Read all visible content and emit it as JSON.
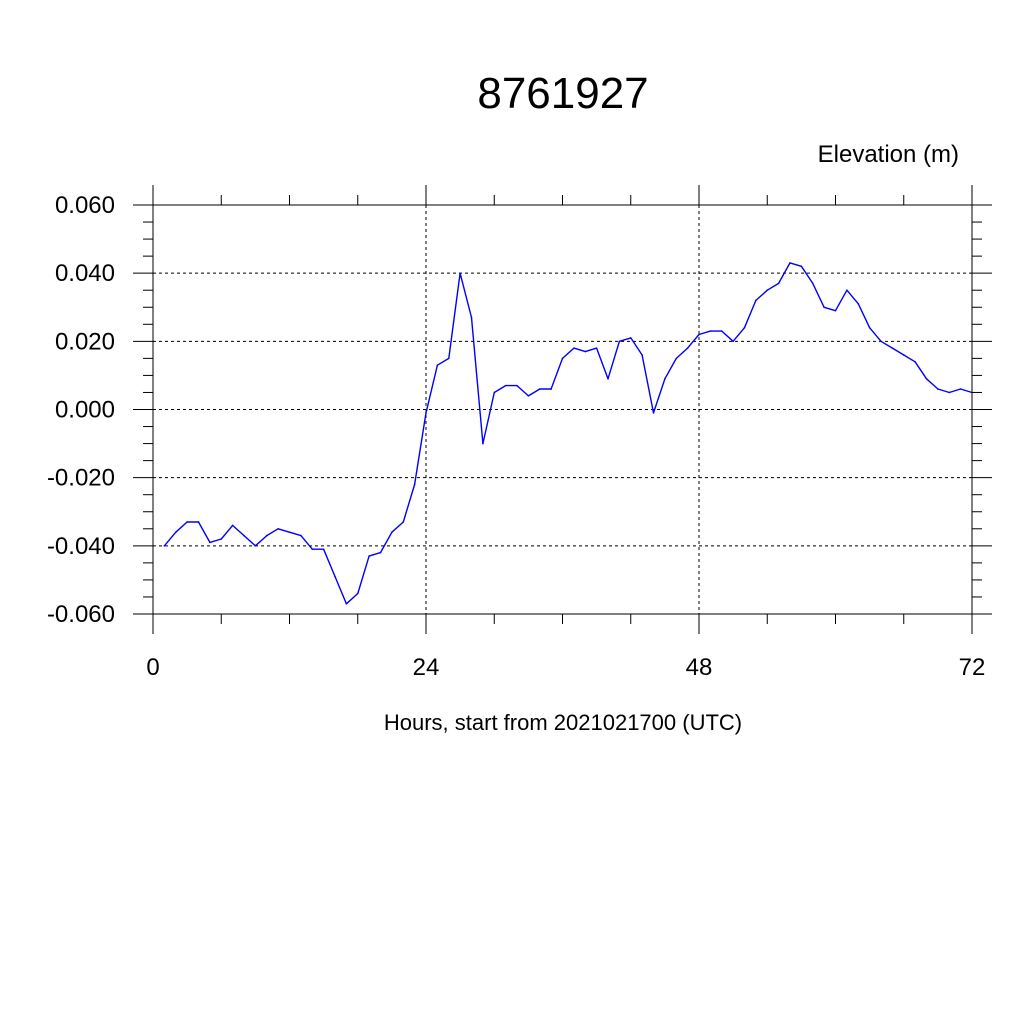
{
  "chart_data": {
    "type": "line",
    "title": "8761927",
    "ylabel": "Elevation (m)",
    "xlabel": "Hours, start from 2021021700 (UTC)",
    "xlim": [
      0,
      72
    ],
    "ylim": [
      -0.06,
      0.06
    ],
    "xticks": [
      0,
      24,
      48,
      72
    ],
    "xtick_labels": [
      "0",
      "24",
      "48",
      "72"
    ],
    "yticks": [
      -0.06,
      -0.04,
      -0.02,
      0.0,
      0.02,
      0.04,
      0.06
    ],
    "ytick_labels": [
      "-0.060",
      "-0.040",
      "-0.020",
      "0.000",
      "0.020",
      "0.040",
      "0.060"
    ],
    "grid": true,
    "series": [
      {
        "color": "#0000ff",
        "x": [
          1,
          2,
          3,
          4,
          5,
          6,
          7,
          8,
          9,
          10,
          11,
          12,
          13,
          14,
          15,
          16,
          17,
          18,
          19,
          20,
          21,
          22,
          23,
          24,
          25,
          26,
          27,
          28,
          29,
          30,
          31,
          32,
          33,
          34,
          35,
          36,
          37,
          38,
          39,
          40,
          41,
          42,
          43,
          44,
          45,
          46,
          47,
          48,
          49,
          50,
          51,
          52,
          53,
          54,
          55,
          56,
          57,
          58,
          59,
          60,
          61,
          62,
          63,
          64,
          65,
          66,
          67,
          68,
          69,
          70,
          71,
          72
        ],
        "y": [
          -0.04,
          -0.036,
          -0.033,
          -0.033,
          -0.039,
          -0.038,
          -0.034,
          -0.037,
          -0.04,
          -0.037,
          -0.035,
          -0.036,
          -0.037,
          -0.041,
          -0.041,
          -0.049,
          -0.057,
          -0.054,
          -0.043,
          -0.042,
          -0.036,
          -0.033,
          -0.022,
          -0.001,
          0.013,
          0.015,
          0.04,
          0.027,
          -0.01,
          0.005,
          0.007,
          0.007,
          0.004,
          0.006,
          0.006,
          0.015,
          0.018,
          0.017,
          0.018,
          0.009,
          0.02,
          0.021,
          0.016,
          -0.001,
          0.009,
          0.015,
          0.018,
          0.022,
          0.023,
          0.023,
          0.02,
          0.024,
          0.032,
          0.035,
          0.037,
          0.043,
          0.042,
          0.037,
          0.03,
          0.029,
          0.035,
          0.031,
          0.024,
          0.02,
          0.018,
          0.016,
          0.014,
          0.009,
          0.006,
          0.005,
          0.006,
          0.005
        ]
      }
    ]
  }
}
